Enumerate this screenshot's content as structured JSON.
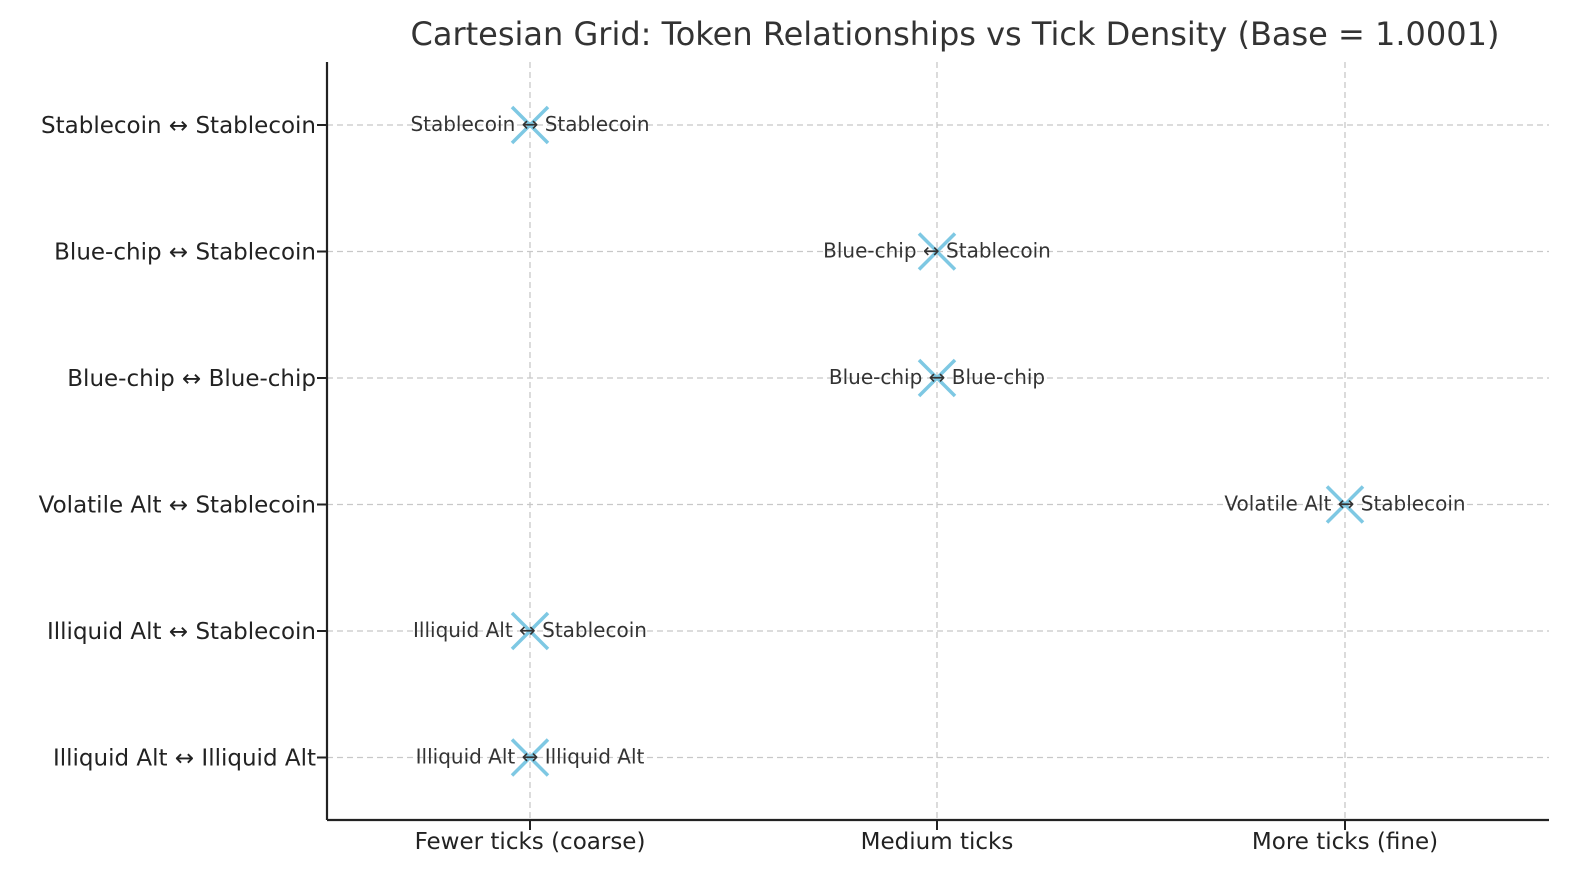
{
  "chart_data": {
    "type": "scatter",
    "title": "Cartesian Grid: Token Relationships vs Tick Density (Base = 1.0001)",
    "xlabel": "",
    "ylabel": "",
    "x_categories": [
      "Fewer ticks (coarse)",
      "Medium ticks",
      "More ticks (fine)"
    ],
    "y_categories": [
      "Illiquid Alt ↔ Illiquid Alt",
      "Illiquid Alt ↔ Stablecoin",
      "Volatile Alt ↔ Stablecoin",
      "Blue-chip ↔ Blue-chip",
      "Blue-chip ↔ Stablecoin",
      "Stablecoin ↔ Stablecoin"
    ],
    "points": [
      {
        "x": "Fewer ticks (coarse)",
        "y": "Stablecoin ↔ Stablecoin",
        "label": "Stablecoin ↔ Stablecoin"
      },
      {
        "x": "Medium ticks",
        "y": "Blue-chip ↔ Stablecoin",
        "label": "Blue-chip ↔ Stablecoin"
      },
      {
        "x": "Medium ticks",
        "y": "Blue-chip ↔ Blue-chip",
        "label": "Blue-chip ↔ Blue-chip"
      },
      {
        "x": "More ticks (fine)",
        "y": "Volatile Alt ↔ Stablecoin",
        "label": "Volatile Alt ↔ Stablecoin"
      },
      {
        "x": "Fewer ticks (coarse)",
        "y": "Illiquid Alt ↔ Stablecoin",
        "label": "Illiquid Alt ↔ Stablecoin"
      },
      {
        "x": "Fewer ticks (coarse)",
        "y": "Illiquid Alt ↔ Illiquid Alt",
        "label": "Illiquid Alt ↔ Illiquid Alt"
      }
    ],
    "marker": "x",
    "marker_color": "#7ec8e3",
    "grid": true,
    "legend": "none"
  }
}
